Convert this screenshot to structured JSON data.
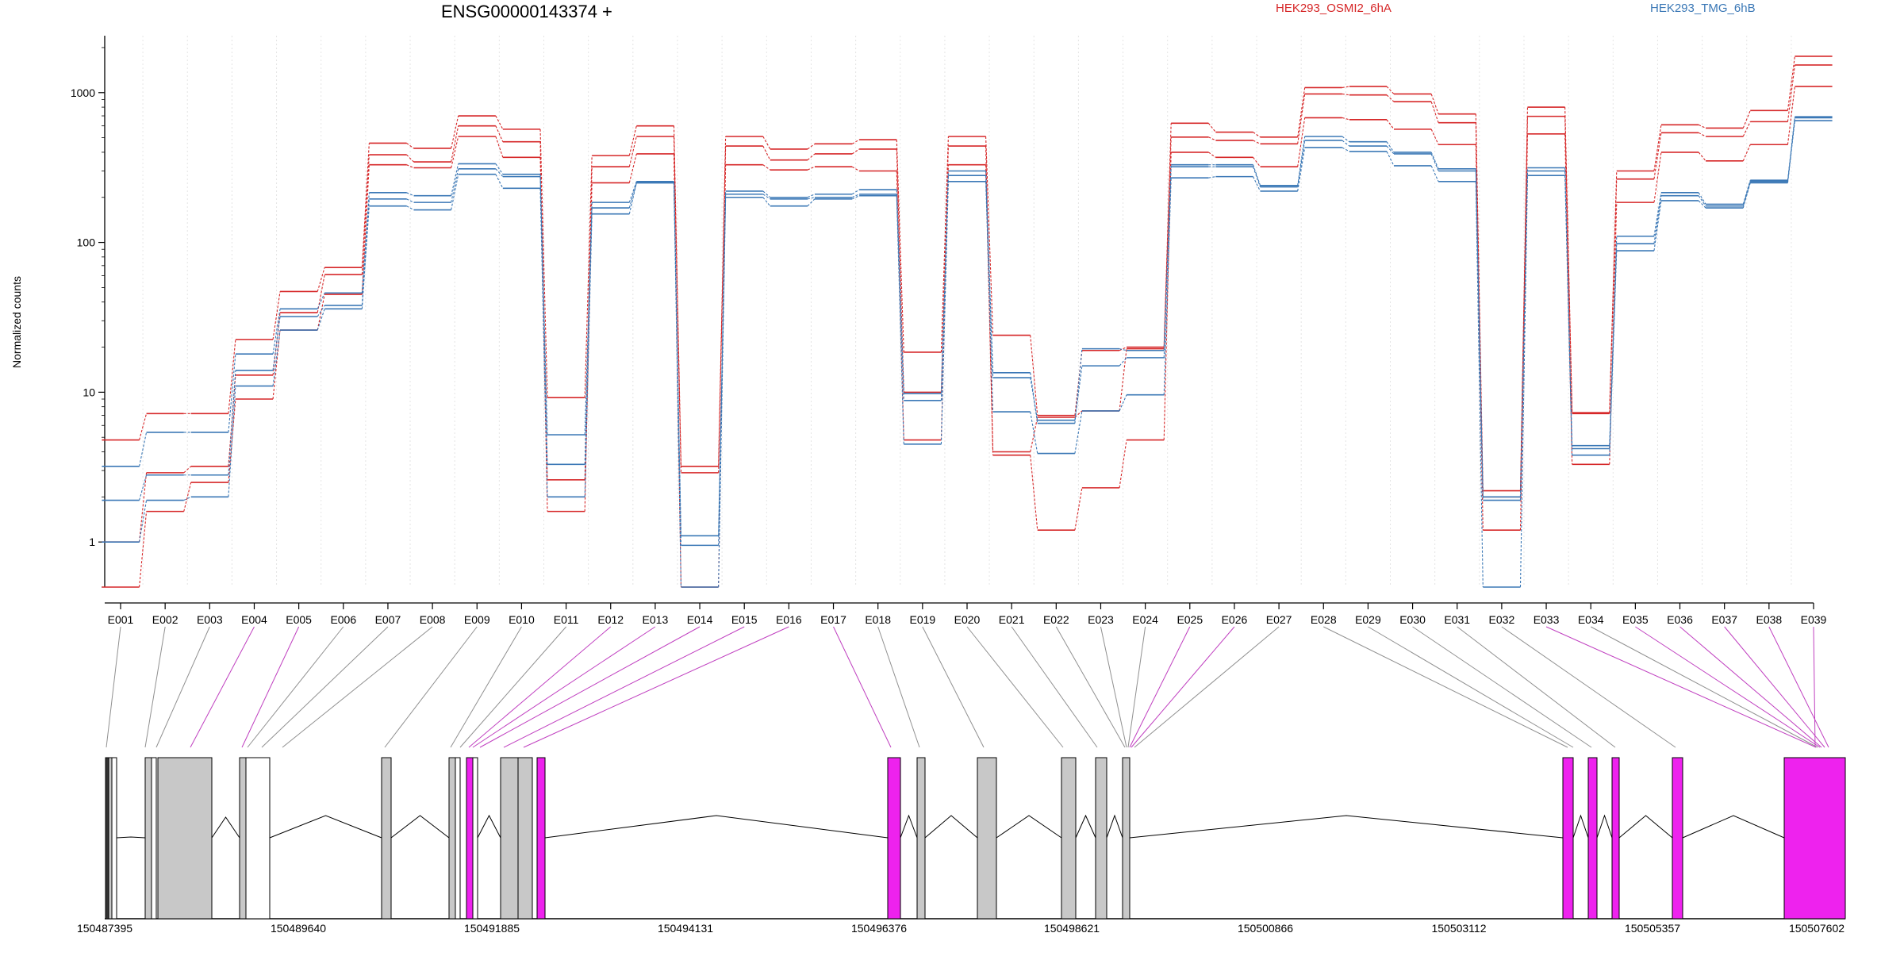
{
  "chart_data": {
    "type": "line",
    "title": "ENSG00000143374 +",
    "ylabel": "Normalized counts",
    "xlabel": "",
    "yscale": "log",
    "ylim": [
      0.5,
      2400
    ],
    "yticks": [
      1,
      10,
      100,
      1000
    ],
    "ytick_labels": [
      "1",
      "10",
      "100",
      "1000"
    ],
    "grid": "vertical dotted lines at exon boundaries",
    "legend": [
      {
        "label": "HEK293_OSMI2_6hA",
        "color": "#d62728",
        "position": "top-center"
      },
      {
        "label": "HEK293_TMG_6hB",
        "color": "#3b78b6",
        "position": "top-right"
      }
    ],
    "categories": [
      "E001",
      "E002",
      "E003",
      "E004",
      "E005",
      "E006",
      "E007",
      "E008",
      "E009",
      "E010",
      "E011",
      "E012",
      "E013",
      "E014",
      "E015",
      "E016",
      "E017",
      "E018",
      "E019",
      "E020",
      "E021",
      "E022",
      "E023",
      "E024",
      "E025",
      "E026",
      "E027",
      "E028",
      "E029",
      "E030",
      "E031",
      "E032",
      "E033",
      "E034",
      "E035",
      "E036",
      "E037",
      "E038",
      "E039"
    ],
    "series": [
      {
        "group": "HEK293_OSMI2_6hA",
        "color": "#d62728",
        "values": [
          4.8,
          7.2,
          7.2,
          22.5,
          47,
          68,
          460,
          425,
          700,
          570,
          9.2,
          380,
          600,
          3.2,
          510,
          420,
          455,
          485,
          18.5,
          510,
          24,
          7.0,
          19,
          20,
          625,
          545,
          505,
          1080,
          1100,
          980,
          720,
          2.2,
          800,
          7.3,
          300,
          610,
          580,
          760,
          1750
        ]
      },
      {
        "group": "HEK293_OSMI2_6hA",
        "color": "#d62728",
        "values": [
          1.0,
          2.9,
          3.2,
          13,
          34,
          61,
          385,
          345,
          600,
          470,
          2.6,
          320,
          510,
          2.9,
          440,
          355,
          390,
          420,
          10,
          440,
          4.0,
          6.8,
          7.5,
          19.5,
          505,
          480,
          455,
          980,
          965,
          870,
          630,
          2.0,
          695,
          7.2,
          265,
          540,
          510,
          640,
          1530
        ]
      },
      {
        "group": "HEK293_OSMI2_6hA",
        "color": "#d62728",
        "values": [
          0.5,
          1.6,
          2.5,
          9,
          26,
          45,
          330,
          315,
          510,
          370,
          1.6,
          250,
          390,
          0.5,
          330,
          305,
          320,
          300,
          4.8,
          330,
          3.8,
          1.2,
          2.3,
          4.8,
          400,
          370,
          320,
          680,
          660,
          570,
          450,
          1.2,
          530,
          3.3,
          185,
          400,
          350,
          450,
          1100
        ]
      },
      {
        "group": "HEK293_TMG_6hB",
        "color": "#3b78b6",
        "values": [
          3.2,
          5.4,
          5.4,
          18,
          36,
          46,
          215,
          205,
          335,
          285,
          5.2,
          185,
          255,
          1.1,
          220,
          200,
          210,
          225,
          9.8,
          300,
          13.5,
          6.2,
          19.5,
          19,
          330,
          330,
          240,
          510,
          470,
          400,
          310,
          2.0,
          315,
          4.4,
          110,
          215,
          180,
          260,
          690
        ]
      },
      {
        "group": "HEK293_TMG_6hB",
        "color": "#3b78b6",
        "values": [
          1.9,
          2.8,
          2.8,
          14,
          32,
          38,
          195,
          185,
          310,
          275,
          3.3,
          170,
          250,
          0.95,
          210,
          195,
          200,
          210,
          8.8,
          280,
          12.5,
          6.5,
          15,
          17,
          320,
          320,
          235,
          480,
          440,
          390,
          300,
          1.9,
          300,
          4.2,
          98,
          205,
          175,
          255,
          680
        ]
      },
      {
        "group": "HEK293_TMG_6hB",
        "color": "#3b78b6",
        "values": [
          1.0,
          1.9,
          2.0,
          11,
          26,
          36,
          175,
          165,
          285,
          230,
          2.0,
          155,
          250,
          0.5,
          200,
          175,
          195,
          205,
          4.5,
          255,
          7.4,
          3.9,
          7.5,
          9.6,
          270,
          275,
          220,
          430,
          405,
          325,
          255,
          0.5,
          280,
          3.8,
          88,
          190,
          170,
          250,
          650
        ]
      }
    ],
    "gene_model": {
      "coordinate_labels": [
        "150487395",
        "150489640",
        "150491885",
        "150494131",
        "150496376",
        "150498621",
        "150500866",
        "150503112",
        "150505357",
        "150507602"
      ],
      "exon_colors": {
        "default": "#c8c8c8",
        "highlighted": "#ee22ee",
        "unbinned": "#ffffff"
      }
    }
  }
}
